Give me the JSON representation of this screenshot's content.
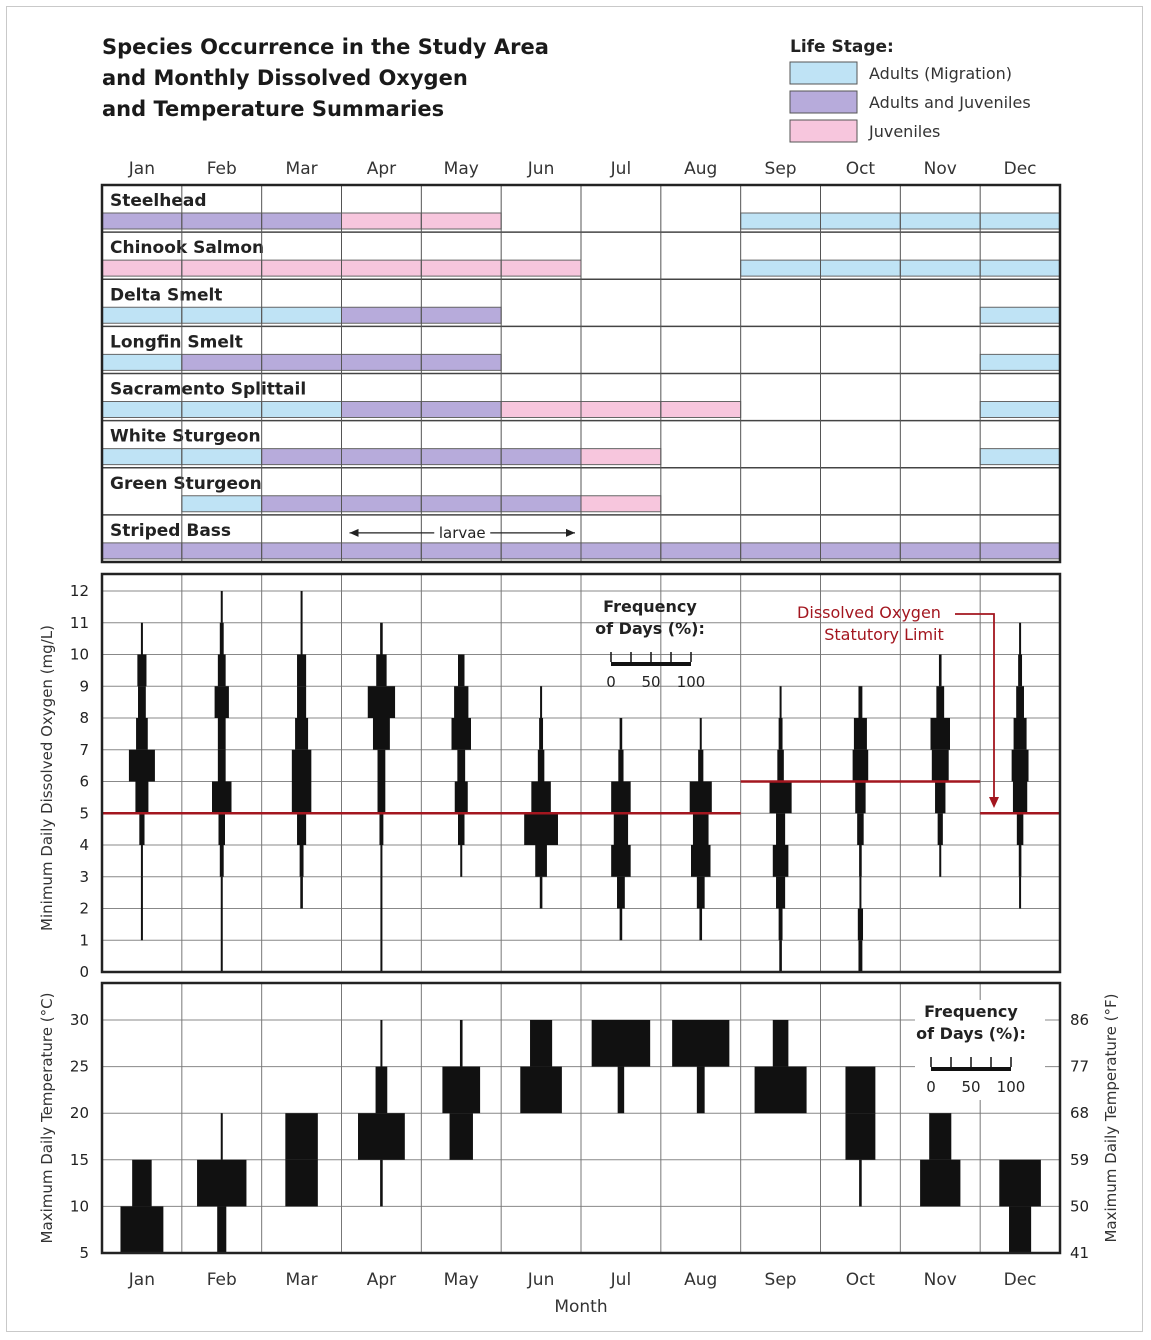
{
  "title_lines": [
    "Species Occurrence in the Study Area",
    "and Monthly Dissolved Oxygen",
    "and Temperature Summaries"
  ],
  "legend": {
    "title": "Life Stage:",
    "items": [
      {
        "key": "adults_migration",
        "label": "Adults (Migration)",
        "color": "#bfe3f5"
      },
      {
        "key": "adults_juveniles",
        "label": "Adults and Juveniles",
        "color": "#b7abdb"
      },
      {
        "key": "juveniles",
        "label": "Juveniles",
        "color": "#f7c6dd"
      }
    ]
  },
  "months": [
    "Jan",
    "Feb",
    "Mar",
    "Apr",
    "May",
    "Jun",
    "Jul",
    "Aug",
    "Sep",
    "Oct",
    "Nov",
    "Dec"
  ],
  "xlabel": "Month",
  "chart_data": [
    {
      "type": "table",
      "title": "Species Occurrence in the Study Area",
      "species": [
        {
          "name": "Steelhead",
          "stages": [
            "adults_juveniles",
            "adults_juveniles",
            "adults_juveniles",
            "juveniles",
            "juveniles",
            null,
            null,
            null,
            "adults_migration",
            "adults_migration",
            "adults_migration",
            "adults_migration"
          ]
        },
        {
          "name": "Chinook Salmon",
          "stages": [
            "juveniles",
            "juveniles",
            "juveniles",
            "juveniles",
            "juveniles",
            "juveniles",
            null,
            null,
            "adults_migration",
            "adults_migration",
            "adults_migration",
            "adults_migration"
          ]
        },
        {
          "name": "Delta Smelt",
          "stages": [
            "adults_migration",
            "adults_migration",
            "adults_migration",
            "adults_juveniles",
            "adults_juveniles",
            null,
            null,
            null,
            null,
            null,
            null,
            "adults_migration"
          ]
        },
        {
          "name": "Longfin Smelt",
          "stages": [
            "adults_migration",
            "adults_juveniles",
            "adults_juveniles",
            "adults_juveniles",
            "adults_juveniles",
            null,
            null,
            null,
            null,
            null,
            null,
            "adults_migration"
          ]
        },
        {
          "name": "Sacramento Splittail",
          "stages": [
            "adults_migration",
            "adults_migration",
            "adults_migration",
            "adults_juveniles",
            "adults_juveniles",
            "juveniles",
            "juveniles",
            "juveniles",
            null,
            null,
            null,
            "adults_migration"
          ]
        },
        {
          "name": "White Sturgeon",
          "stages": [
            "adults_migration",
            "adults_migration",
            "adults_juveniles",
            "adults_juveniles",
            "adults_juveniles",
            "adults_juveniles",
            "juveniles",
            null,
            null,
            null,
            null,
            "adults_migration"
          ]
        },
        {
          "name": "Green Sturgeon",
          "stages": [
            null,
            "adults_migration",
            "adults_juveniles",
            "adults_juveniles",
            "adults_juveniles",
            "adults_juveniles",
            "juveniles",
            null,
            null,
            null,
            null,
            null
          ]
        },
        {
          "name": "Striped Bass",
          "stages": [
            "adults_juveniles",
            "adults_juveniles",
            "adults_juveniles",
            "adults_juveniles",
            "adults_juveniles",
            "adults_juveniles",
            "adults_juveniles",
            "adults_juveniles",
            "adults_juveniles",
            "adults_juveniles",
            "adults_juveniles",
            "adults_juveniles"
          ]
        }
      ],
      "annotation": {
        "text": "larvae",
        "species": "Striped Bass",
        "from_month": "Apr",
        "to_month": "Jun"
      }
    },
    {
      "type": "bar",
      "subtype": "frequency kite (violin) plot",
      "ylabel": "Minimum Daily Dissolved Oxygen (mg/L)",
      "ylim": [
        0,
        12
      ],
      "yticks": [
        0,
        1,
        2,
        3,
        4,
        5,
        6,
        7,
        8,
        9,
        10,
        11,
        12
      ],
      "bin_width": 1,
      "frequency_scale": {
        "title_lines": [
          "Frequency",
          "of Days (%):"
        ],
        "ticks": [
          "0",
          "50",
          "100"
        ]
      },
      "statutory_limit": {
        "label_lines": [
          "Dissolved Oxygen",
          "Statutory Limit"
        ],
        "color": "#a3161f",
        "segments": [
          {
            "from_month": "Jan",
            "to_month": "Aug",
            "value": 5
          },
          {
            "from_month": "Sep",
            "to_month": "Nov",
            "value": 6
          },
          {
            "from_month": "Dec",
            "to_month": "Dec",
            "value": 5
          }
        ]
      },
      "distributions": [
        {
          "month": "Jan",
          "bins": [
            [
              1,
              2,
              1
            ],
            [
              2,
              3,
              1
            ],
            [
              3,
              4,
              2
            ],
            [
              4,
              5,
              8
            ],
            [
              5,
              6,
              20
            ],
            [
              6,
              7,
              40
            ],
            [
              7,
              8,
              18
            ],
            [
              8,
              9,
              12
            ],
            [
              9,
              10,
              14
            ],
            [
              10,
              11,
              2
            ]
          ]
        },
        {
          "month": "Feb",
          "bins": [
            [
              0,
              1,
              1
            ],
            [
              1,
              2,
              1
            ],
            [
              2,
              3,
              2
            ],
            [
              3,
              4,
              6
            ],
            [
              4,
              5,
              10
            ],
            [
              5,
              6,
              30
            ],
            [
              6,
              7,
              12
            ],
            [
              7,
              8,
              12
            ],
            [
              8,
              9,
              22
            ],
            [
              9,
              10,
              12
            ],
            [
              10,
              11,
              6
            ],
            [
              11,
              12,
              2
            ]
          ]
        },
        {
          "month": "Mar",
          "bins": [
            [
              2,
              3,
              4
            ],
            [
              3,
              4,
              6
            ],
            [
              4,
              5,
              14
            ],
            [
              5,
              6,
              30
            ],
            [
              6,
              7,
              30
            ],
            [
              7,
              8,
              20
            ],
            [
              8,
              9,
              14
            ],
            [
              9,
              10,
              14
            ],
            [
              10,
              11,
              2
            ],
            [
              11,
              12,
              1
            ]
          ]
        },
        {
          "month": "Apr",
          "bins": [
            [
              0,
              1,
              1
            ],
            [
              1,
              2,
              1
            ],
            [
              2,
              3,
              2
            ],
            [
              3,
              4,
              2
            ],
            [
              4,
              5,
              6
            ],
            [
              5,
              6,
              12
            ],
            [
              6,
              7,
              12
            ],
            [
              7,
              8,
              26
            ],
            [
              8,
              9,
              42
            ],
            [
              9,
              10,
              16
            ],
            [
              10,
              11,
              4
            ]
          ]
        },
        {
          "month": "May",
          "bins": [
            [
              3,
              4,
              2
            ],
            [
              4,
              5,
              10
            ],
            [
              5,
              6,
              20
            ],
            [
              6,
              7,
              12
            ],
            [
              7,
              8,
              30
            ],
            [
              8,
              9,
              22
            ],
            [
              9,
              10,
              10
            ]
          ]
        },
        {
          "month": "Jun",
          "bins": [
            [
              2,
              3,
              4
            ],
            [
              3,
              4,
              18
            ],
            [
              4,
              5,
              52
            ],
            [
              5,
              6,
              30
            ],
            [
              6,
              7,
              10
            ],
            [
              7,
              8,
              6
            ],
            [
              8,
              9,
              2
            ]
          ]
        },
        {
          "month": "Jul",
          "bins": [
            [
              1,
              2,
              4
            ],
            [
              2,
              3,
              12
            ],
            [
              3,
              4,
              30
            ],
            [
              4,
              5,
              22
            ],
            [
              5,
              6,
              30
            ],
            [
              6,
              7,
              8
            ],
            [
              7,
              8,
              4
            ]
          ]
        },
        {
          "month": "Aug",
          "bins": [
            [
              1,
              2,
              4
            ],
            [
              2,
              3,
              12
            ],
            [
              3,
              4,
              30
            ],
            [
              4,
              5,
              24
            ],
            [
              5,
              6,
              34
            ],
            [
              6,
              7,
              8
            ],
            [
              7,
              8,
              2
            ]
          ]
        },
        {
          "month": "Sep",
          "bins": [
            [
              0,
              1,
              4
            ],
            [
              1,
              2,
              6
            ],
            [
              2,
              3,
              14
            ],
            [
              3,
              4,
              24
            ],
            [
              4,
              5,
              14
            ],
            [
              5,
              6,
              34
            ],
            [
              6,
              7,
              10
            ],
            [
              7,
              8,
              6
            ],
            [
              8,
              9,
              2
            ]
          ]
        },
        {
          "month": "Oct",
          "bins": [
            [
              0,
              1,
              6
            ],
            [
              1,
              2,
              8
            ],
            [
              2,
              3,
              2
            ],
            [
              3,
              4,
              4
            ],
            [
              4,
              5,
              10
            ],
            [
              5,
              6,
              16
            ],
            [
              6,
              7,
              24
            ],
            [
              7,
              8,
              20
            ],
            [
              8,
              9,
              6
            ]
          ]
        },
        {
          "month": "Nov",
          "bins": [
            [
              3,
              4,
              2
            ],
            [
              4,
              5,
              8
            ],
            [
              5,
              6,
              16
            ],
            [
              6,
              7,
              26
            ],
            [
              7,
              8,
              30
            ],
            [
              8,
              9,
              12
            ],
            [
              9,
              10,
              4
            ]
          ]
        },
        {
          "month": "Dec",
          "bins": [
            [
              2,
              3,
              2
            ],
            [
              3,
              4,
              4
            ],
            [
              4,
              5,
              10
            ],
            [
              5,
              6,
              22
            ],
            [
              6,
              7,
              26
            ],
            [
              7,
              8,
              20
            ],
            [
              8,
              9,
              12
            ],
            [
              9,
              10,
              6
            ],
            [
              10,
              11,
              2
            ]
          ]
        }
      ]
    },
    {
      "type": "bar",
      "subtype": "frequency kite (violin) plot",
      "ylabel": "Maximum Daily Temperature (°C)",
      "ylabel_right": "Maximum Daily Temperature (°F)",
      "ylim": [
        5,
        35
      ],
      "yticks": [
        5,
        10,
        15,
        20,
        25,
        30
      ],
      "yticks_right": [
        41,
        50,
        59,
        68,
        77,
        86
      ],
      "bin_width": 5,
      "frequency_scale": {
        "title_lines": [
          "Frequency",
          "of Days (%):"
        ],
        "ticks": [
          "0",
          "50",
          "100"
        ]
      },
      "distributions": [
        {
          "month": "Jan",
          "bins": [
            [
              5,
              10,
              66
            ],
            [
              10,
              15,
              30
            ]
          ]
        },
        {
          "month": "Feb",
          "bins": [
            [
              5,
              10,
              14
            ],
            [
              10,
              15,
              76
            ],
            [
              15,
              20,
              2
            ]
          ]
        },
        {
          "month": "Mar",
          "bins": [
            [
              10,
              15,
              50
            ],
            [
              15,
              20,
              50
            ]
          ]
        },
        {
          "month": "Apr",
          "bins": [
            [
              10,
              15,
              4
            ],
            [
              15,
              20,
              72
            ],
            [
              20,
              25,
              18
            ],
            [
              25,
              30,
              2
            ]
          ]
        },
        {
          "month": "May",
          "bins": [
            [
              15,
              20,
              36
            ],
            [
              20,
              25,
              58
            ],
            [
              25,
              30,
              4
            ]
          ]
        },
        {
          "month": "Jun",
          "bins": [
            [
              20,
              25,
              64
            ],
            [
              25,
              30,
              34
            ]
          ]
        },
        {
          "month": "Jul",
          "bins": [
            [
              20,
              25,
              10
            ],
            [
              25,
              30,
              90
            ]
          ]
        },
        {
          "month": "Aug",
          "bins": [
            [
              20,
              25,
              12
            ],
            [
              25,
              30,
              88
            ]
          ]
        },
        {
          "month": "Sep",
          "bins": [
            [
              20,
              25,
              80
            ],
            [
              25,
              30,
              24
            ]
          ]
        },
        {
          "month": "Oct",
          "bins": [
            [
              10,
              15,
              4
            ],
            [
              15,
              20,
              46
            ],
            [
              20,
              25,
              46
            ]
          ]
        },
        {
          "month": "Nov",
          "bins": [
            [
              10,
              15,
              62
            ],
            [
              15,
              20,
              34
            ]
          ]
        },
        {
          "month": "Dec",
          "bins": [
            [
              5,
              10,
              34
            ],
            [
              10,
              15,
              64
            ]
          ]
        }
      ]
    }
  ]
}
